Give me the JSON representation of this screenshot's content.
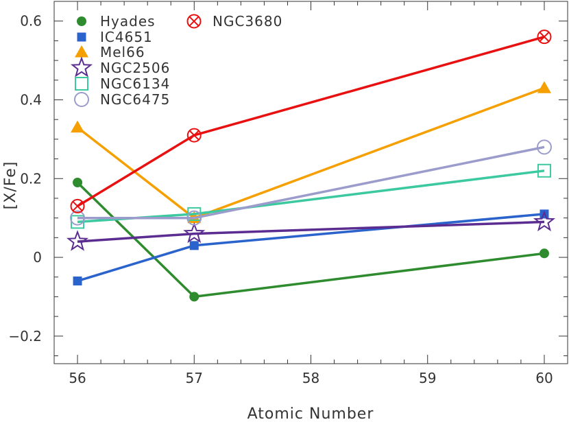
{
  "chart_data": {
    "type": "line",
    "title": "",
    "xlabel": "Atomic Number",
    "ylabel": "[X/Fe]",
    "xlim": [
      55.8,
      60.2
    ],
    "ylim": [
      -0.27,
      0.65
    ],
    "xticks": [
      56,
      57,
      58,
      59,
      60
    ],
    "xtick_labels": [
      "56",
      "57",
      "58",
      "59",
      "60"
    ],
    "yticks": [
      -0.2,
      0,
      0.2,
      0.4,
      0.6
    ],
    "ytick_labels": [
      "−0.2",
      "0",
      "0.2",
      "0.4",
      "0.6"
    ],
    "grid": false,
    "legend_position": "top-left",
    "series": [
      {
        "name": "Hyades",
        "color": "#2e8b2e",
        "marker": "circle",
        "x": [
          56,
          57,
          60
        ],
        "y": [
          0.19,
          -0.1,
          0.01
        ]
      },
      {
        "name": "IC4651",
        "color": "#2b63cc",
        "marker": "square",
        "x": [
          56,
          57,
          60
        ],
        "y": [
          -0.06,
          0.03,
          0.11
        ]
      },
      {
        "name": "Mel66",
        "color": "#f5a000",
        "marker": "triangle",
        "x": [
          56,
          57,
          60
        ],
        "y": [
          0.33,
          0.1,
          0.43
        ]
      },
      {
        "name": "NGC2506",
        "color": "#5b2d91",
        "marker": "star",
        "x": [
          56,
          57,
          60
        ],
        "y": [
          0.04,
          0.06,
          0.09
        ]
      },
      {
        "name": "NGC6134",
        "color": "#3dc9a0",
        "marker": "open-square",
        "x": [
          56,
          57,
          60
        ],
        "y": [
          0.09,
          0.11,
          0.22
        ]
      },
      {
        "name": "NGC6475",
        "color": "#9c9ccc",
        "marker": "open-circle",
        "x": [
          56,
          57,
          60
        ],
        "y": [
          0.1,
          0.1,
          0.28
        ]
      },
      {
        "name": "NGC3680",
        "color": "#e81010",
        "marker": "circle-x",
        "x": [
          56,
          57,
          60
        ],
        "y": [
          0.13,
          0.31,
          0.56
        ]
      }
    ]
  }
}
